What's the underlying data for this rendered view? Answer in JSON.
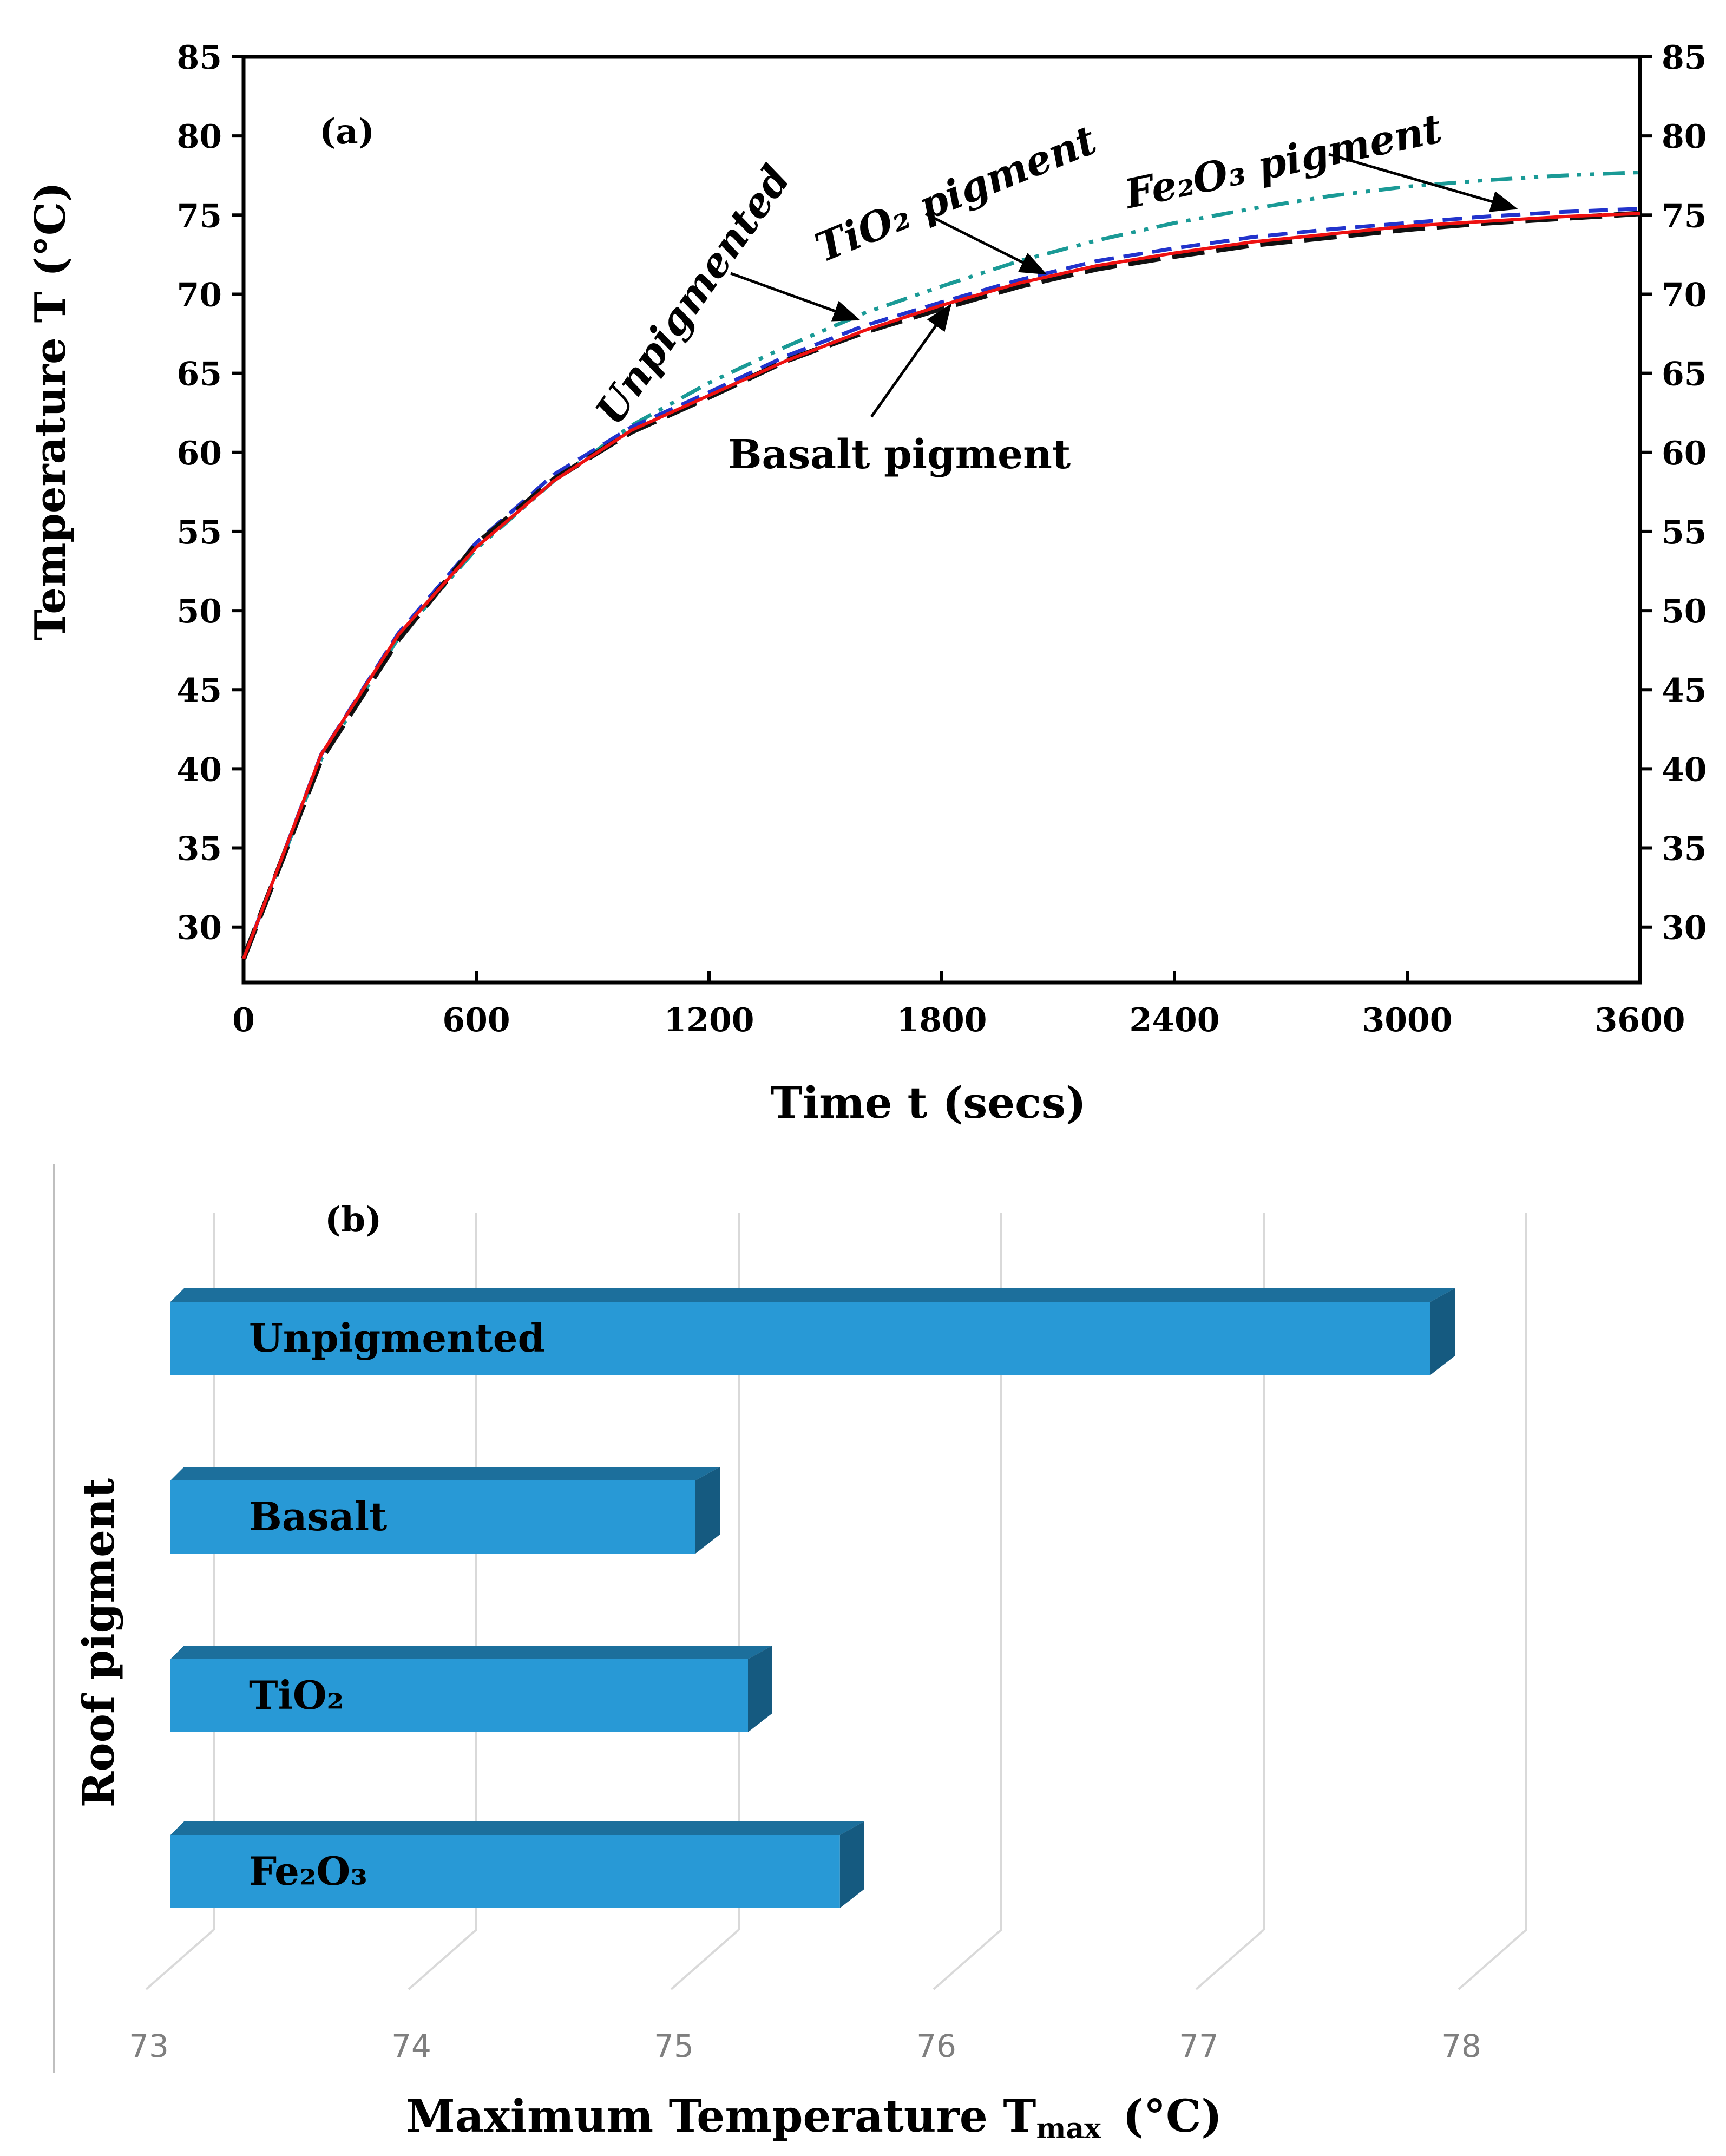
{
  "chart_data": [
    {
      "type": "line",
      "panel_label": "(a)",
      "title": "",
      "xlabel": "Time t (secs)",
      "ylabel": "Temperature T (°C)",
      "xlim": [
        0,
        3600
      ],
      "ylim": [
        26.5,
        85
      ],
      "x_ticks": [
        "0",
        "600",
        "1200",
        "1800",
        "2400",
        "3000",
        "3600"
      ],
      "y_ticks": [
        "30",
        "35",
        "40",
        "45",
        "50",
        "55",
        "60",
        "65",
        "70",
        "75",
        "80",
        "85"
      ],
      "x_tick_values": [
        0,
        600,
        1200,
        1800,
        2400,
        3000,
        3600
      ],
      "y_tick_values": [
        30,
        35,
        40,
        45,
        50,
        55,
        60,
        65,
        70,
        75,
        80,
        85
      ],
      "grid": false,
      "x": [
        0,
        200,
        400,
        600,
        800,
        1000,
        1200,
        1400,
        1600,
        1800,
        2000,
        2200,
        2400,
        2600,
        2800,
        3000,
        3200,
        3400,
        3600
      ],
      "series": [
        {
          "name": "Unpigmented",
          "color": "#1a9a96",
          "style": "dash-dot-dot",
          "values": [
            28,
            40.6,
            48.3,
            53.9,
            58.2,
            61.7,
            64.4,
            66.7,
            68.8,
            70.5,
            72.1,
            73.4,
            74.5,
            75.4,
            76.2,
            76.8,
            77.2,
            77.5,
            77.7
          ]
        },
        {
          "name": "TiO2 pigment",
          "color": "#2233cc",
          "style": "long-dash",
          "values": [
            28,
            40.9,
            48.6,
            54.3,
            58.6,
            61.6,
            63.8,
            66.1,
            68.0,
            69.5,
            70.9,
            72.1,
            72.9,
            73.6,
            74.1,
            74.5,
            74.9,
            75.2,
            75.4
          ]
        },
        {
          "name": "Fe2O3 pigment",
          "color": "#111111",
          "style": "dash",
          "values": [
            28,
            40.6,
            48.2,
            54.2,
            58.3,
            61.3,
            63.5,
            65.8,
            67.6,
            69.1,
            70.5,
            71.6,
            72.4,
            73.1,
            73.6,
            74.1,
            74.5,
            74.8,
            75.1
          ]
        },
        {
          "name": "Basalt pigment",
          "color": "#ee1111",
          "style": "solid",
          "values": [
            28,
            40.9,
            48.5,
            54.0,
            58.2,
            61.4,
            63.6,
            65.8,
            67.7,
            69.3,
            70.7,
            71.8,
            72.6,
            73.3,
            73.8,
            74.3,
            74.6,
            74.9,
            75.1
          ]
        }
      ],
      "annotations": [
        {
          "text": "Unpigmented"
        },
        {
          "text": "TiO₂ pigment"
        },
        {
          "text": "Fe₂O₃ pigment"
        },
        {
          "text": "Basalt pigment"
        }
      ]
    },
    {
      "type": "bar",
      "orientation": "horizontal",
      "panel_label": "(b)",
      "title": "",
      "xlabel": "Maximum Temperature  T",
      "xlabel_sub": "max",
      "xlabel_unit": "(°C)",
      "ylabel": "Roof pigment",
      "xlim": [
        73,
        78
      ],
      "x_ticks": [
        "73",
        "74",
        "75",
        "76",
        "77",
        "78"
      ],
      "x_tick_values": [
        73,
        74,
        75,
        76,
        77,
        78
      ],
      "grid": true,
      "categories": [
        "Unpigmented",
        "Basalt",
        "TiO₂",
        "Fe₂O₃"
      ],
      "values": [
        77.8,
        75.0,
        75.2,
        75.55
      ],
      "bar_color": "#2899d6"
    }
  ]
}
